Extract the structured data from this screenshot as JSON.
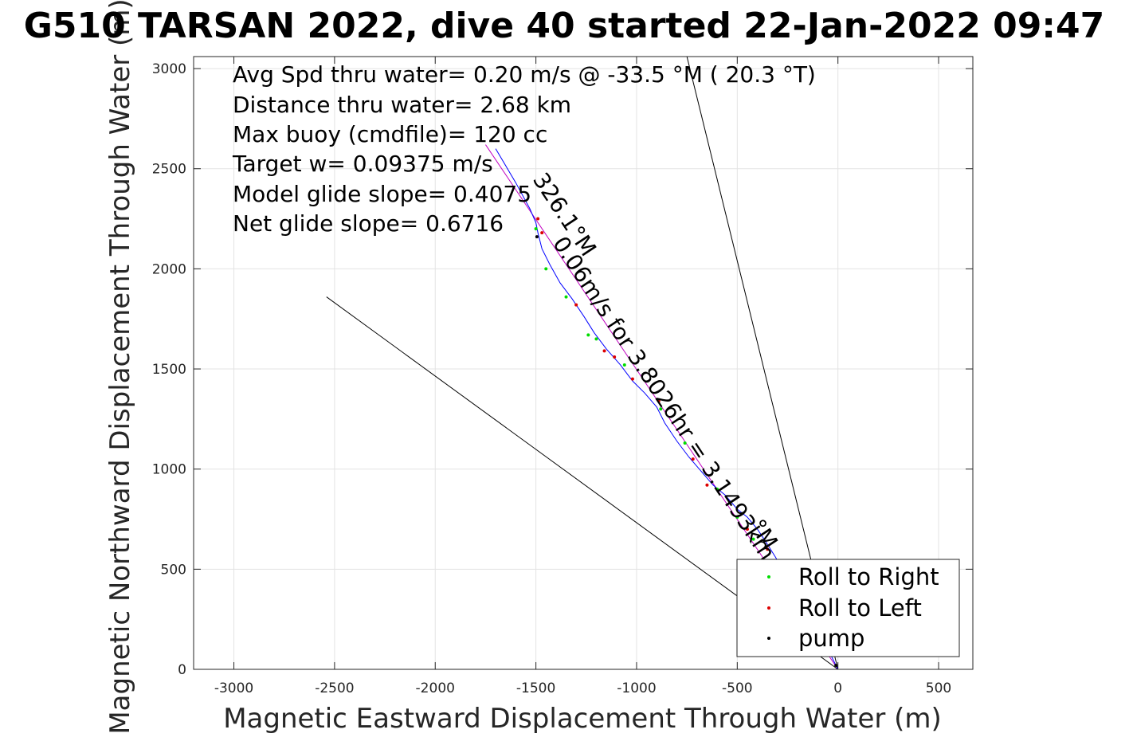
{
  "chart_data": {
    "type": "line",
    "title": "G510 TARSAN 2022, dive 40 started 22-Jan-2022 09:47",
    "xlabel": "Magnetic Eastward Displacement Through Water (m)",
    "ylabel": "Magnetic Northward Displacement Through Water (m)",
    "xlim": [
      -3200,
      670
    ],
    "ylim": [
      0,
      3060
    ],
    "xticks": [
      -3000,
      -2500,
      -2000,
      -1500,
      -1000,
      -500,
      0,
      500
    ],
    "yticks": [
      0,
      500,
      1000,
      1500,
      2000,
      2500,
      3000
    ],
    "xtick_labels": [
      "-3000",
      "-2500",
      "-2000",
      "-1500",
      "-1000",
      "-500",
      "0",
      "500"
    ],
    "ytick_labels": [
      "0",
      "500",
      "1000",
      "1500",
      "2000",
      "2500",
      "3000"
    ],
    "grid": true,
    "legend_position": "bottom-right",
    "annotations": [
      "Avg Spd thru water=  0.20 m/s @ -33.5 °M ( 20.3 °T)",
      "Distance thru water=  2.68 km",
      "Max buoy (cmdfile)= 120 cc",
      "Target w= 0.09375 m/s",
      "Model glide slope= 0.4075",
      "Net glide slope= 0.6716"
    ],
    "rotated_labels": {
      "heading_upper": "326.1°M",
      "speed_line": "0.06m/s for 3.8026hr = 3.1493km",
      "heading_lower": "°M"
    },
    "reference_lines": [
      {
        "name": "",
        "x": [
          0,
          -2540
        ],
        "y": [
          0,
          1860
        ],
        "color": "#000000"
      },
      {
        "name": "",
        "x": [
          0,
          -750
        ],
        "y": [
          0,
          3060
        ],
        "color": "#000000"
      },
      {
        "name": "",
        "x": [
          0,
          -1750
        ],
        "y": [
          0,
          2620
        ],
        "color": "#c000c0"
      }
    ],
    "series": [
      {
        "name": "",
        "color": "#0000ff",
        "x": [
          0,
          -40,
          -120,
          -200,
          -260,
          -310,
          -360,
          -400,
          -450,
          -500,
          -560,
          -620,
          -680,
          -740,
          -800,
          -860,
          -900,
          -960,
          -1020,
          -1080,
          -1150,
          -1210,
          -1260,
          -1320,
          -1380,
          -1430,
          -1470,
          -1490,
          -1500,
          -1530,
          -1600,
          -1700
        ],
        "y": [
          0,
          80,
          210,
          350,
          470,
          560,
          640,
          700,
          760,
          800,
          870,
          920,
          990,
          1060,
          1140,
          1230,
          1310,
          1380,
          1440,
          1520,
          1600,
          1680,
          1760,
          1850,
          1930,
          2020,
          2100,
          2180,
          2230,
          2300,
          2430,
          2600
        ]
      }
    ],
    "markers": {
      "roll_right": {
        "color": "#00dd00",
        "x": [
          -80,
          -220,
          -420,
          -500,
          -600,
          -760,
          -880,
          -1060,
          -1200,
          -1240,
          -1350,
          -1450,
          -1500
        ],
        "y": [
          140,
          400,
          650,
          760,
          900,
          1130,
          1300,
          1520,
          1650,
          1670,
          1860,
          2000,
          2200
        ]
      },
      "roll_left": {
        "color": "#dd0000",
        "x": [
          -60,
          -180,
          -350,
          -450,
          -650,
          -720,
          -890,
          -1020,
          -1110,
          -1160,
          -1300,
          -1470,
          -1490
        ],
        "y": [
          120,
          330,
          600,
          700,
          920,
          1050,
          1340,
          1450,
          1560,
          1590,
          1820,
          2180,
          2250
        ],
        "size": 1
      },
      "pump": {
        "color": "#000000",
        "x": [
          -10,
          -1495
        ],
        "y": [
          20,
          2160
        ]
      }
    },
    "legend": [
      "Roll to Right",
      "Roll to Left",
      "pump"
    ]
  }
}
